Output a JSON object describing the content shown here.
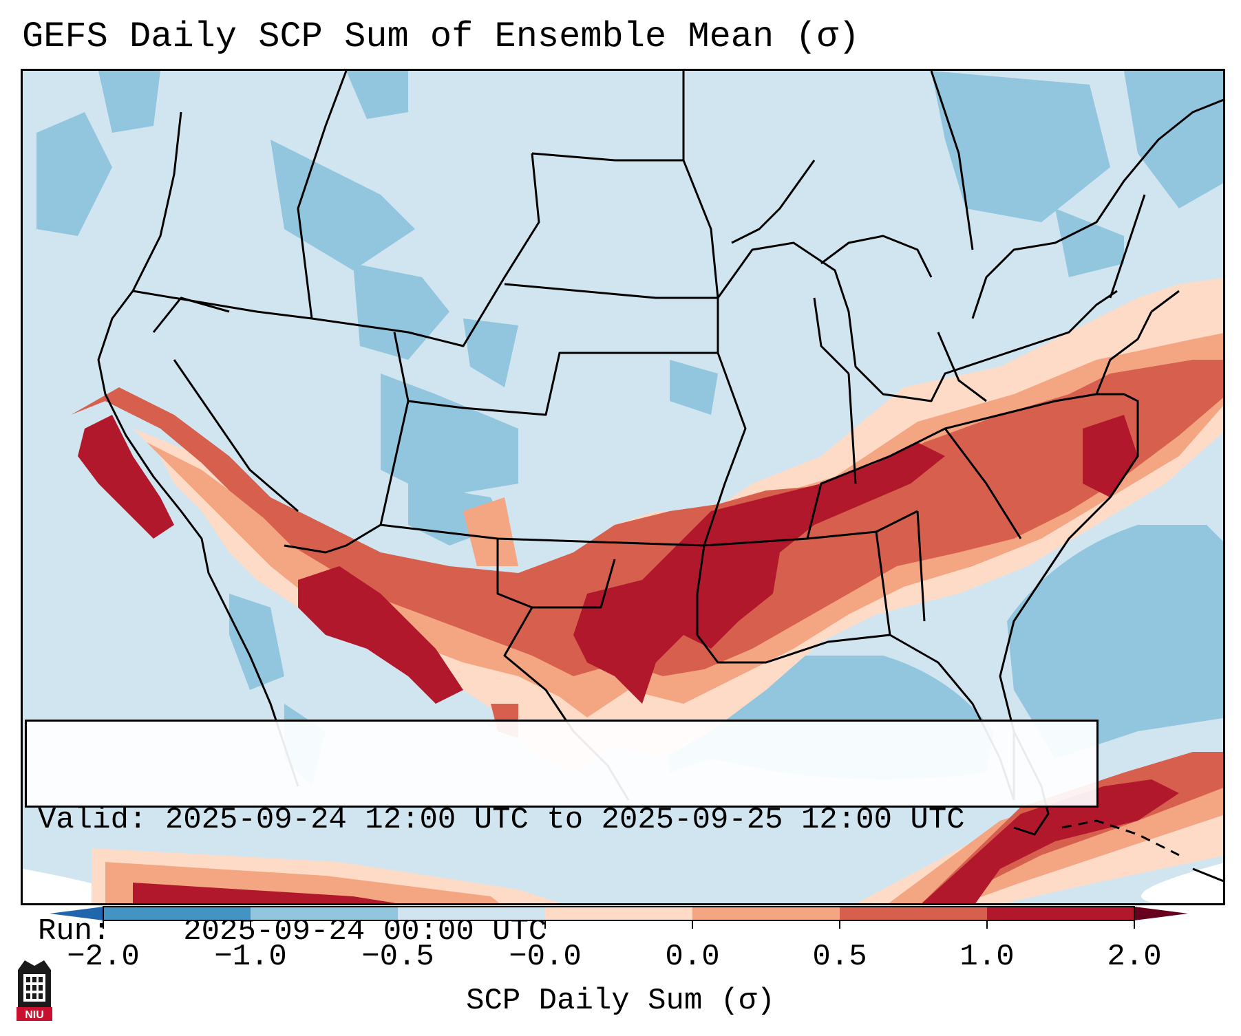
{
  "title": "GEFS Daily SCP Sum of Ensemble Mean (σ)",
  "valid_label": "Valid:",
  "valid_range": "2025-09-24 12:00 UTC to 2025-09-25 12:00 UTC",
  "run_label": "Run:",
  "run_time": "2025-09-24 00:00 UTC",
  "colorbar": {
    "label": "SCP Daily Sum (σ)",
    "ticks": [
      "−2.0",
      "−1.0",
      "−0.5",
      "−0.0",
      "0.0",
      "0.5",
      "1.0",
      "2.0"
    ],
    "colors": [
      "#4393c3",
      "#92c5de",
      "#d1e5f0",
      "#fddbc7",
      "#f4a582",
      "#d6604d",
      "#b2182b"
    ]
  },
  "logo_text": "NIU",
  "map_colors": {
    "ocean_neg": "#92c5de",
    "land_neg": "#d1e5f0",
    "pos_low": "#fddbc7",
    "pos_mid": "#f4a582",
    "pos_high": "#d6604d",
    "pos_max": "#b2182b",
    "border": "#000000"
  }
}
